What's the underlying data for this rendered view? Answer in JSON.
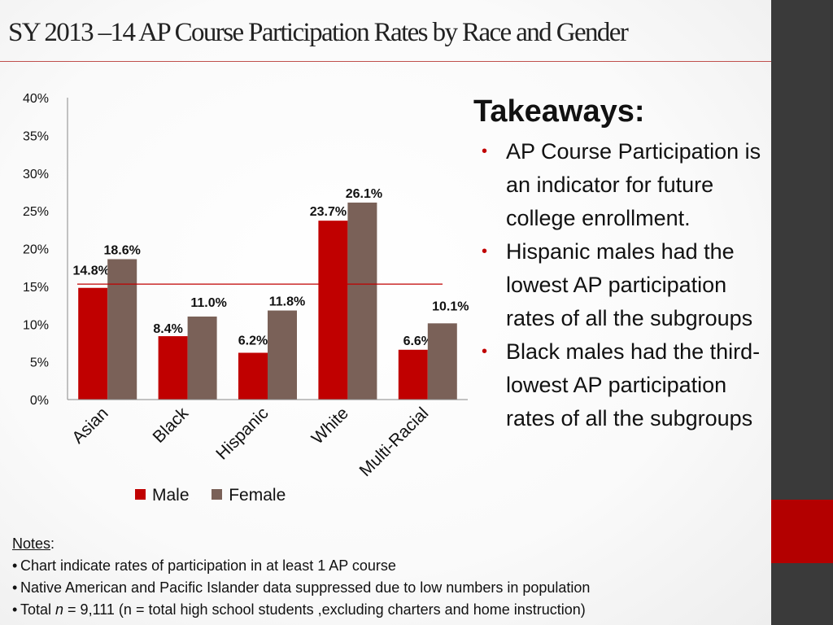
{
  "title": "SY 2013 –14 AP Course Participation Rates by Race and Gender",
  "colors": {
    "male": "#c00000",
    "female": "#7a6158",
    "accent": "#b30000",
    "sidebar": "#3a3a3a"
  },
  "chart_data": {
    "type": "bar",
    "categories": [
      "Asian",
      "Black",
      "Hispanic",
      "White",
      "Multi-Racial"
    ],
    "series": [
      {
        "name": "Male",
        "values": [
          14.8,
          8.4,
          6.2,
          23.7,
          6.6
        ],
        "labels": [
          "14.8%",
          "8.4%",
          "6.2%",
          "23.7%",
          "6.6%"
        ]
      },
      {
        "name": "Female",
        "values": [
          18.6,
          11.0,
          11.8,
          26.1,
          10.1
        ],
        "labels": [
          "18.6%",
          "11.0%",
          "11.8%",
          "26.1%",
          "10.1%"
        ]
      }
    ],
    "ylim": [
      0,
      40
    ],
    "yticks": [
      0,
      5,
      10,
      15,
      20,
      25,
      30,
      35,
      40
    ],
    "ytick_labels": [
      "0%",
      "5%",
      "10%",
      "15%",
      "20%",
      "25%",
      "30%",
      "35%",
      "40%"
    ],
    "reference_line": 15.3,
    "legend_position": "bottom"
  },
  "takeaways": {
    "title": "Takeaways:",
    "items": [
      "AP Course Participation is an indicator for future college enrollment.",
      "Hispanic males had the lowest  AP participation rates of all the subgroups",
      "Black males had the third-lowest  AP participation rates of all the subgroups"
    ]
  },
  "notes": {
    "label": "Notes",
    "lines": [
      "Chart indicate rates of participation in at least 1 AP course",
      "Native American and Pacific Islander data suppressed due to low numbers in population"
    ],
    "total_prefix": "Total ",
    "total_n": "n",
    "total_rest": " = 9,111 (n = total high school students ,excluding charters and home instruction)"
  }
}
